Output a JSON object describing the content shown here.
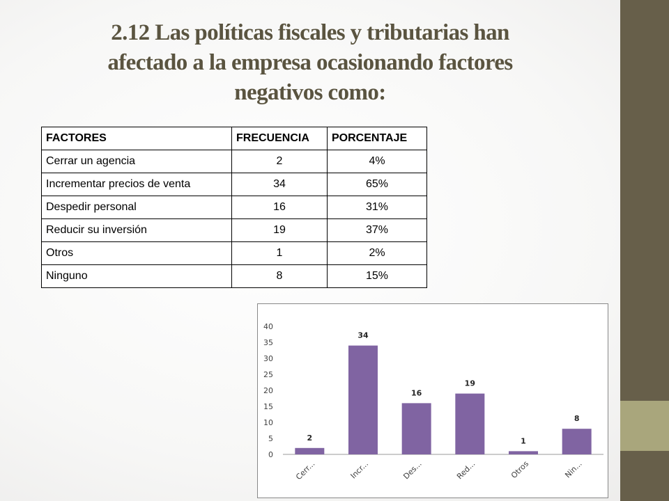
{
  "title": {
    "line1": "2.12 Las políticas fiscales y tributarias han",
    "line2": "afectado a la empresa ocasionando factores",
    "line3": "negativos como:"
  },
  "table": {
    "headers": [
      "FACTORES",
      "FRECUENCIA",
      "PORCENTAJE"
    ],
    "rows": [
      [
        "Cerrar un agencia",
        "2",
        "4%"
      ],
      [
        "Incrementar precios de venta",
        "34",
        "65%"
      ],
      [
        "Despedir personal",
        "16",
        "31%"
      ],
      [
        "Reducir su inversión",
        "19",
        "37%"
      ],
      [
        "Otros",
        "1",
        "2%"
      ],
      [
        "Ninguno",
        "8",
        "15%"
      ]
    ]
  },
  "colors": {
    "bar": "#8064a2",
    "sidebar": "#675f4a",
    "sidebar_accent": "#a9a67c",
    "title": "#5a5440"
  },
  "chart_data": {
    "type": "bar",
    "categories": [
      "Cerr...",
      "Incr...",
      "Des...",
      "Red...",
      "Otros",
      "Nin..."
    ],
    "values": [
      2,
      34,
      16,
      19,
      1,
      8
    ],
    "ylim": [
      0,
      40
    ],
    "yticks": [
      0,
      5,
      10,
      15,
      20,
      25,
      30,
      35,
      40
    ],
    "grid": false,
    "legend": "none",
    "title": "",
    "xlabel": "",
    "ylabel": ""
  }
}
